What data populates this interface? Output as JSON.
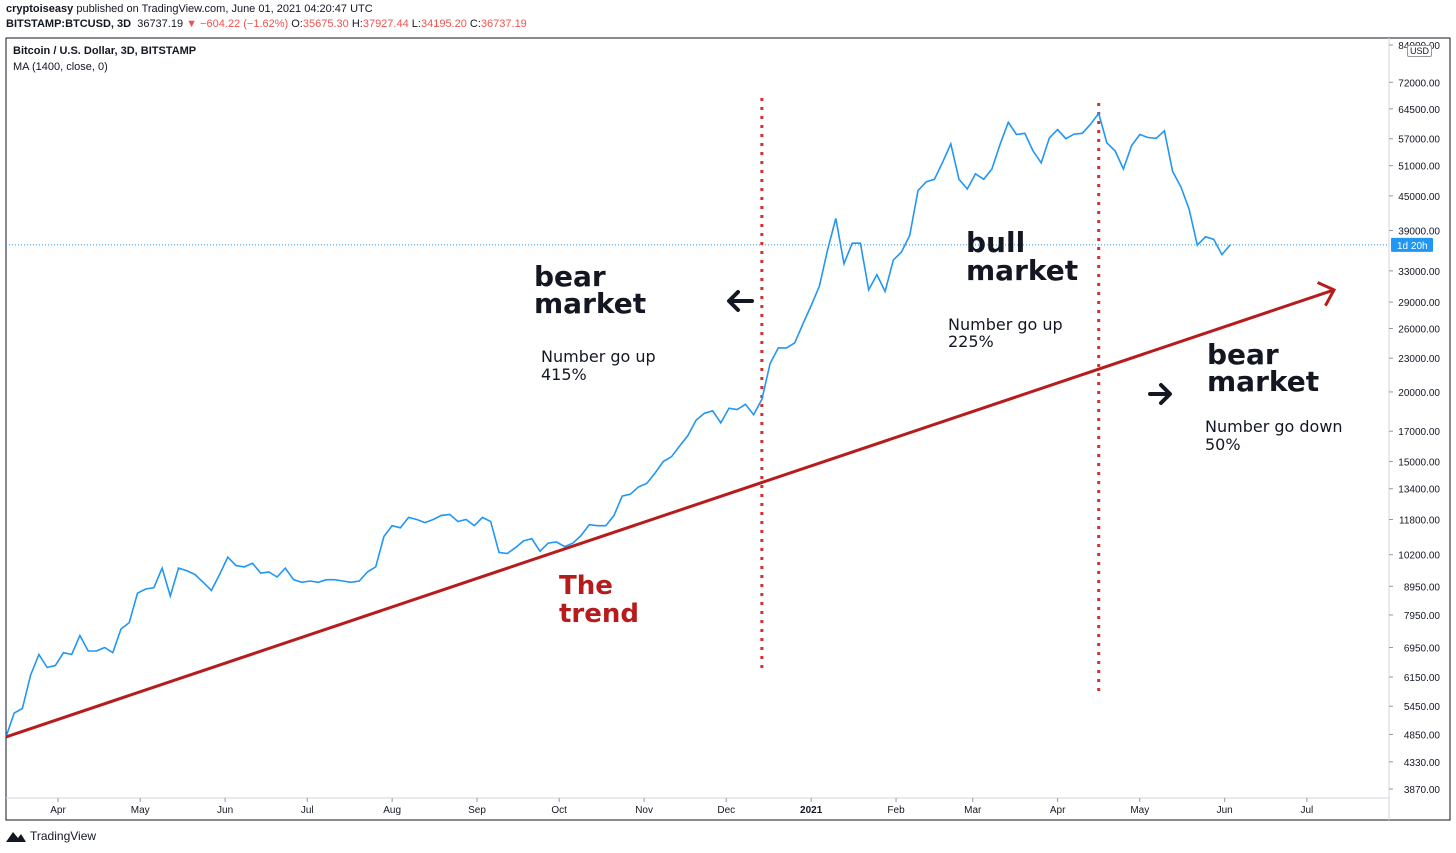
{
  "header": {
    "author": "cryptoiseasy",
    "published": "published on TradingView.com, June 01, 2021 04:20:47 UTC",
    "symbol": "BITSTAMP:BTCUSD, 3D",
    "price": "36737.19",
    "change_arrow": "▼",
    "change": "−604.22 (−1.62%)",
    "o_label": "O:",
    "o_value": "35675.30",
    "h_label": "H:",
    "h_value": "37927.44",
    "l_label": "L:",
    "l_value": "34195.20",
    "c_label": "C:",
    "c_value": "36737.19"
  },
  "legend": {
    "title": "Bitcoin / U.S. Dollar, 3D, BITSTAMP",
    "indicator": "MA (1400, close, 0)"
  },
  "currency": "USD",
  "brand": "TradingView",
  "colors": {
    "line": "#2196f3",
    "trend": "#b71c1c",
    "divider": "#d32f2f",
    "annotation_red": "#b71c1c",
    "text": "#131722"
  },
  "chart_data": {
    "type": "line",
    "title": "Bitcoin / U.S. Dollar, 3D, BITSTAMP",
    "scale": "log",
    "ylim": [
      3400,
      84000
    ],
    "x_ticks": [
      "Apr",
      "May",
      "Jun",
      "Jul",
      "Aug",
      "Sep",
      "Oct",
      "Nov",
      "Dec",
      "2021",
      "Feb",
      "Mar",
      "Apr",
      "May",
      "Jun",
      "Jul"
    ],
    "y_ticks": [
      "84000.00",
      "72000.00",
      "64500.00",
      "57000.00",
      "51000.00",
      "45000.00",
      "39000.00",
      "33000.00",
      "29000.00",
      "26000.00",
      "23000.00",
      "20000.00",
      "17000.00",
      "15000.00",
      "13400.00",
      "11800.00",
      "10200.00",
      "8950.00",
      "7950.00",
      "6950.00",
      "6150.00",
      "5450.00",
      "4850.00",
      "4330.00",
      "3870.00"
    ],
    "x_domain": [
      "2020-03-13",
      "2021-07-31"
    ],
    "series": [
      {
        "name": "BTCUSD",
        "points": [
          [
            "2020-03-13",
            4800
          ],
          [
            "2020-03-16",
            5300
          ],
          [
            "2020-03-19",
            5400
          ],
          [
            "2020-03-22",
            6200
          ],
          [
            "2020-03-25",
            6750
          ],
          [
            "2020-03-28",
            6400
          ],
          [
            "2020-03-31",
            6450
          ],
          [
            "2020-04-03",
            6800
          ],
          [
            "2020-04-06",
            6750
          ],
          [
            "2020-04-09",
            7300
          ],
          [
            "2020-04-12",
            6850
          ],
          [
            "2020-04-15",
            6850
          ],
          [
            "2020-04-18",
            6950
          ],
          [
            "2020-04-21",
            6800
          ],
          [
            "2020-04-24",
            7500
          ],
          [
            "2020-04-27",
            7700
          ],
          [
            "2020-04-30",
            8700
          ],
          [
            "2020-05-03",
            8850
          ],
          [
            "2020-05-06",
            8900
          ],
          [
            "2020-05-09",
            9650
          ],
          [
            "2020-05-12",
            8600
          ],
          [
            "2020-05-15",
            9650
          ],
          [
            "2020-05-18",
            9550
          ],
          [
            "2020-05-21",
            9400
          ],
          [
            "2020-05-24",
            9100
          ],
          [
            "2020-05-27",
            8800
          ],
          [
            "2020-05-30",
            9400
          ],
          [
            "2020-06-02",
            10100
          ],
          [
            "2020-06-05",
            9750
          ],
          [
            "2020-06-08",
            9700
          ],
          [
            "2020-06-11",
            9850
          ],
          [
            "2020-06-14",
            9450
          ],
          [
            "2020-06-17",
            9500
          ],
          [
            "2020-06-20",
            9300
          ],
          [
            "2020-06-23",
            9650
          ],
          [
            "2020-06-26",
            9200
          ],
          [
            "2020-06-29",
            9100
          ],
          [
            "2020-07-02",
            9150
          ],
          [
            "2020-07-05",
            9100
          ],
          [
            "2020-07-08",
            9200
          ],
          [
            "2020-07-11",
            9200
          ],
          [
            "2020-07-14",
            9150
          ],
          [
            "2020-07-17",
            9100
          ],
          [
            "2020-07-20",
            9150
          ],
          [
            "2020-07-23",
            9500
          ],
          [
            "2020-07-26",
            9700
          ],
          [
            "2020-07-29",
            11000
          ],
          [
            "2020-08-01",
            11500
          ],
          [
            "2020-08-04",
            11400
          ],
          [
            "2020-08-07",
            11900
          ],
          [
            "2020-08-10",
            11800
          ],
          [
            "2020-08-13",
            11650
          ],
          [
            "2020-08-16",
            11800
          ],
          [
            "2020-08-19",
            12000
          ],
          [
            "2020-08-22",
            12050
          ],
          [
            "2020-08-25",
            11700
          ],
          [
            "2020-08-28",
            11800
          ],
          [
            "2020-08-31",
            11500
          ],
          [
            "2020-09-03",
            11900
          ],
          [
            "2020-09-06",
            11700
          ],
          [
            "2020-09-09",
            10300
          ],
          [
            "2020-09-12",
            10250
          ],
          [
            "2020-09-15",
            10500
          ],
          [
            "2020-09-18",
            10800
          ],
          [
            "2020-09-21",
            10900
          ],
          [
            "2020-09-24",
            10350
          ],
          [
            "2020-09-27",
            10700
          ],
          [
            "2020-09-30",
            10750
          ],
          [
            "2020-10-03",
            10550
          ],
          [
            "2020-10-06",
            10700
          ],
          [
            "2020-10-09",
            11050
          ],
          [
            "2020-10-12",
            11550
          ],
          [
            "2020-10-15",
            11500
          ],
          [
            "2020-10-18",
            11500
          ],
          [
            "2020-10-21",
            12000
          ],
          [
            "2020-10-24",
            13000
          ],
          [
            "2020-10-27",
            13100
          ],
          [
            "2020-10-30",
            13500
          ],
          [
            "2020-11-02",
            13700
          ],
          [
            "2020-11-05",
            14300
          ],
          [
            "2020-11-08",
            15000
          ],
          [
            "2020-11-11",
            15300
          ],
          [
            "2020-11-14",
            16000
          ],
          [
            "2020-11-17",
            16700
          ],
          [
            "2020-11-20",
            17800
          ],
          [
            "2020-11-23",
            18300
          ],
          [
            "2020-11-26",
            18500
          ],
          [
            "2020-11-29",
            17600
          ],
          [
            "2020-12-02",
            18700
          ],
          [
            "2020-12-05",
            18600
          ],
          [
            "2020-12-08",
            19000
          ],
          [
            "2020-12-11",
            18200
          ],
          [
            "2020-12-14",
            19400
          ],
          [
            "2020-12-17",
            22500
          ],
          [
            "2020-12-20",
            24000
          ],
          [
            "2020-12-23",
            24000
          ],
          [
            "2020-12-26",
            24500
          ],
          [
            "2020-12-29",
            26500
          ],
          [
            "2021-01-01",
            28600
          ],
          [
            "2021-01-04",
            31000
          ],
          [
            "2021-01-07",
            36000
          ],
          [
            "2021-01-10",
            41000
          ],
          [
            "2021-01-13",
            34000
          ],
          [
            "2021-01-16",
            37000
          ],
          [
            "2021-01-19",
            37000
          ],
          [
            "2021-01-22",
            30500
          ],
          [
            "2021-01-25",
            32500
          ],
          [
            "2021-01-28",
            30300
          ],
          [
            "2021-01-31",
            34500
          ],
          [
            "2021-02-03",
            35700
          ],
          [
            "2021-02-06",
            38200
          ],
          [
            "2021-02-09",
            46000
          ],
          [
            "2021-02-12",
            47700
          ],
          [
            "2021-02-15",
            48200
          ],
          [
            "2021-02-18",
            51700
          ],
          [
            "2021-02-21",
            55800
          ],
          [
            "2021-02-24",
            48200
          ],
          [
            "2021-02-27",
            46300
          ],
          [
            "2021-03-02",
            49300
          ],
          [
            "2021-03-05",
            48200
          ],
          [
            "2021-03-08",
            50300
          ],
          [
            "2021-03-11",
            55700
          ],
          [
            "2021-03-14",
            61000
          ],
          [
            "2021-03-17",
            58000
          ],
          [
            "2021-03-20",
            58300
          ],
          [
            "2021-03-23",
            54200
          ],
          [
            "2021-03-26",
            51600
          ],
          [
            "2021-03-29",
            57200
          ],
          [
            "2021-04-01",
            59200
          ],
          [
            "2021-04-04",
            57000
          ],
          [
            "2021-04-07",
            58100
          ],
          [
            "2021-04-10",
            58300
          ],
          [
            "2021-04-13",
            60500
          ],
          [
            "2021-04-16",
            63300
          ],
          [
            "2021-04-19",
            56000
          ],
          [
            "2021-04-22",
            54200
          ],
          [
            "2021-04-25",
            50300
          ],
          [
            "2021-04-28",
            55400
          ],
          [
            "2021-05-01",
            58000
          ],
          [
            "2021-05-04",
            57300
          ],
          [
            "2021-05-07",
            57100
          ],
          [
            "2021-05-10",
            58900
          ],
          [
            "2021-05-13",
            49800
          ],
          [
            "2021-05-16",
            46700
          ],
          [
            "2021-05-19",
            42600
          ],
          [
            "2021-05-22",
            36700
          ],
          [
            "2021-05-25",
            38000
          ],
          [
            "2021-05-28",
            37600
          ],
          [
            "2021-05-31",
            35300
          ],
          [
            "2021-06-03",
            36737
          ]
        ]
      }
    ],
    "last_value_label": "1d 20h",
    "annotations": {
      "bear_left_1": "bear",
      "bear_left_2": "market",
      "gain_left_1": "Number go up",
      "gain_left_2": "415%",
      "bull_1": "bull",
      "bull_2": "market",
      "gain_mid_1": "Number go up",
      "gain_mid_2": "225%",
      "bear_right_1": "bear",
      "bear_right_2": "market",
      "loss_1": "Number go down",
      "loss_2": "50%",
      "trend_1": "The",
      "trend_2": "trend"
    },
    "trend_line": {
      "from": [
        "2020-03-13",
        4800
      ],
      "to": [
        "2021-07-31",
        30500
      ]
    },
    "dividers": [
      "2020-12-14",
      "2021-04-16"
    ]
  }
}
